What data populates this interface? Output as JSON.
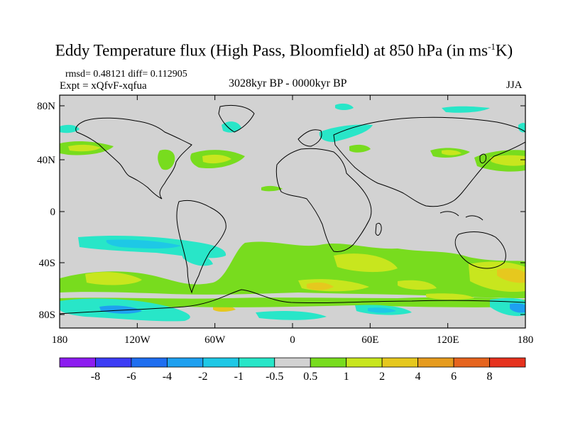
{
  "title_main": "Eddy Temperature flux (High Pass, Bloomfield) at 850 hPa (in ms",
  "title_sup": "-1",
  "title_end": "K)",
  "stats": "rmsd= 0.48121 diff= 0.112905",
  "experiment": "Expt = xQfvF-xqfua",
  "period": "3028kyr BP - 0000kyr BP",
  "season": "JJA",
  "lat_labels": [
    "80N",
    "40N",
    "0",
    "40S",
    "80S"
  ],
  "lon_labels": [
    "180",
    "120W",
    "60W",
    "0",
    "60E",
    "120E",
    "180"
  ],
  "colorbar": {
    "labels": [
      "-8",
      "-6",
      "-4",
      "-2",
      "-1",
      "-0.5",
      "0.5",
      "1",
      "2",
      "4",
      "6",
      "8"
    ],
    "colors": [
      "#8c1cf0",
      "#3c3cf5",
      "#1e6ef0",
      "#1ea0f0",
      "#1ec8e6",
      "#28e6c8",
      "#d2d2d2",
      "#78dc1e",
      "#c8e61e",
      "#e6c81e",
      "#e69b1e",
      "#e6641e",
      "#e6321e"
    ]
  },
  "colors": {
    "land_background": "#d2d2d2",
    "positive_0_5_1": "#78dc1e",
    "positive_1_2": "#c8e61e",
    "positive_2_4": "#e6c81e",
    "negative_0_5_1": "#28e6c8",
    "negative_1_2": "#1ec8e6",
    "negative_2_4": "#1ea0f0"
  }
}
